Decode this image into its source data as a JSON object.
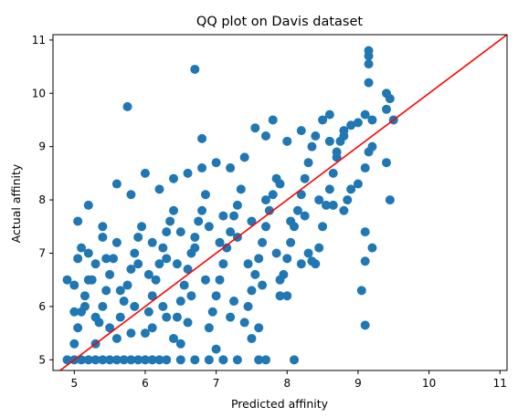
{
  "chart_data": {
    "type": "scatter",
    "title": "QQ plot on Davis dataset",
    "xlabel": "Predicted affinity",
    "ylabel": "Actual affinity",
    "xlim": [
      4.7,
      11.1
    ],
    "ylim": [
      4.8,
      11.1
    ],
    "xticks": [
      "5",
      "6",
      "7",
      "8",
      "9",
      "10",
      "11"
    ],
    "yticks": [
      "5",
      "6",
      "7",
      "8",
      "9",
      "10",
      "11"
    ],
    "grid": false,
    "colors": {
      "points": "#1f77b4",
      "reference_line": "#ff0000"
    },
    "reference_line": {
      "x": [
        4.7,
        11.1
      ],
      "y": [
        4.7,
        11.1
      ]
    },
    "series": [
      {
        "points": [
          [
            5.0,
            5.0
          ],
          [
            5.1,
            5.0
          ],
          [
            5.2,
            5.0
          ],
          [
            5.3,
            5.0
          ],
          [
            5.4,
            5.0
          ],
          [
            5.5,
            5.0
          ],
          [
            5.6,
            5.0
          ],
          [
            5.7,
            5.0
          ],
          [
            5.8,
            5.0
          ],
          [
            5.9,
            5.0
          ],
          [
            6.0,
            5.0
          ],
          [
            6.1,
            5.0
          ],
          [
            6.2,
            5.0
          ],
          [
            6.3,
            5.0
          ],
          [
            6.5,
            5.0
          ],
          [
            6.7,
            5.0
          ],
          [
            6.9,
            5.0
          ],
          [
            7.1,
            5.0
          ],
          [
            7.3,
            5.0
          ],
          [
            7.6,
            5.0
          ],
          [
            7.7,
            5.0
          ],
          [
            8.1,
            5.0
          ],
          [
            4.9,
            5.0
          ],
          [
            5.0,
            5.3
          ],
          [
            5.05,
            5.6
          ],
          [
            5.1,
            5.9
          ],
          [
            5.15,
            6.2
          ],
          [
            5.2,
            6.5
          ],
          [
            5.0,
            6.4
          ],
          [
            5.05,
            6.9
          ],
          [
            5.1,
            7.1
          ],
          [
            5.2,
            7.0
          ],
          [
            5.3,
            5.3
          ],
          [
            5.35,
            5.7
          ],
          [
            5.4,
            6.0
          ],
          [
            5.45,
            6.3
          ],
          [
            5.5,
            6.6
          ],
          [
            5.55,
            6.9
          ],
          [
            5.6,
            7.2
          ],
          [
            5.3,
            6.8
          ],
          [
            5.4,
            7.3
          ],
          [
            5.6,
            5.4
          ],
          [
            5.65,
            5.8
          ],
          [
            5.7,
            6.1
          ],
          [
            5.75,
            6.4
          ],
          [
            5.8,
            6.7
          ],
          [
            5.85,
            7.0
          ],
          [
            5.9,
            7.3
          ],
          [
            5.95,
            7.5
          ],
          [
            6.0,
            5.5
          ],
          [
            6.05,
            5.9
          ],
          [
            6.1,
            6.2
          ],
          [
            6.15,
            6.5
          ],
          [
            6.2,
            6.8
          ],
          [
            6.25,
            7.1
          ],
          [
            6.3,
            7.4
          ],
          [
            6.35,
            7.6
          ],
          [
            6.4,
            7.8
          ],
          [
            6.4,
            5.4
          ],
          [
            6.45,
            5.8
          ],
          [
            6.5,
            6.1
          ],
          [
            6.55,
            6.4
          ],
          [
            6.6,
            6.7
          ],
          [
            6.65,
            7.0
          ],
          [
            6.7,
            7.3
          ],
          [
            6.75,
            7.6
          ],
          [
            6.8,
            7.8
          ],
          [
            6.85,
            8.1
          ],
          [
            6.9,
            5.6
          ],
          [
            6.95,
            5.9
          ],
          [
            7.0,
            6.2
          ],
          [
            7.05,
            6.5
          ],
          [
            7.1,
            6.8
          ],
          [
            7.15,
            7.1
          ],
          [
            7.2,
            7.4
          ],
          [
            7.25,
            7.7
          ],
          [
            7.3,
            7.9
          ],
          [
            7.35,
            8.2
          ],
          [
            7.4,
            5.7
          ],
          [
            7.45,
            6.0
          ],
          [
            7.5,
            6.3
          ],
          [
            7.55,
            6.6
          ],
          [
            7.6,
            6.9
          ],
          [
            7.65,
            7.2
          ],
          [
            7.7,
            7.5
          ],
          [
            7.75,
            7.8
          ],
          [
            7.8,
            8.1
          ],
          [
            7.85,
            8.4
          ],
          [
            7.9,
            6.2
          ],
          [
            7.95,
            6.6
          ],
          [
            8.0,
            6.9
          ],
          [
            8.05,
            7.2
          ],
          [
            8.1,
            7.5
          ],
          [
            8.15,
            7.8
          ],
          [
            8.2,
            8.1
          ],
          [
            8.25,
            8.4
          ],
          [
            8.3,
            8.7
          ],
          [
            8.35,
            9.0
          ],
          [
            8.4,
            6.8
          ],
          [
            8.45,
            7.1
          ],
          [
            8.5,
            7.5
          ],
          [
            8.55,
            7.9
          ],
          [
            8.6,
            8.2
          ],
          [
            8.65,
            8.5
          ],
          [
            8.7,
            8.8
          ],
          [
            8.75,
            9.1
          ],
          [
            8.8,
            9.3
          ],
          [
            8.6,
            9.6
          ],
          [
            4.9,
            6.5
          ],
          [
            5.05,
            7.6
          ],
          [
            5.2,
            7.9
          ],
          [
            5.4,
            7.5
          ],
          [
            5.6,
            8.3
          ],
          [
            5.8,
            8.1
          ],
          [
            6.0,
            8.5
          ],
          [
            6.2,
            8.2
          ],
          [
            6.4,
            8.4
          ],
          [
            6.6,
            8.5
          ],
          [
            6.8,
            8.6
          ],
          [
            7.0,
            8.7
          ],
          [
            7.2,
            8.6
          ],
          [
            7.4,
            8.8
          ],
          [
            7.55,
            9.35
          ],
          [
            7.7,
            9.2
          ],
          [
            7.8,
            9.5
          ],
          [
            8.0,
            9.1
          ],
          [
            8.2,
            9.3
          ],
          [
            8.4,
            9.2
          ],
          [
            8.5,
            9.5
          ],
          [
            8.6,
            9.1
          ],
          [
            8.7,
            8.9
          ],
          [
            8.8,
            9.2
          ],
          [
            8.9,
            9.4
          ],
          [
            9.0,
            9.45
          ],
          [
            9.1,
            9.6
          ],
          [
            9.2,
            9.5
          ],
          [
            8.8,
            7.8
          ],
          [
            8.9,
            8.2
          ],
          [
            9.0,
            8.3
          ],
          [
            9.1,
            8.6
          ],
          [
            9.15,
            8.9
          ],
          [
            9.2,
            9.0
          ],
          [
            9.4,
            8.7
          ],
          [
            9.4,
            9.7
          ],
          [
            9.4,
            10.0
          ],
          [
            9.45,
            9.9
          ],
          [
            9.5,
            9.5
          ],
          [
            9.15,
            10.8
          ],
          [
            9.15,
            10.7
          ],
          [
            9.15,
            10.55
          ],
          [
            9.15,
            10.2
          ],
          [
            9.1,
            7.4
          ],
          [
            9.05,
            6.3
          ],
          [
            9.1,
            5.65
          ],
          [
            9.1,
            6.85
          ],
          [
            9.2,
            7.1
          ],
          [
            9.45,
            8.0
          ],
          [
            6.7,
            10.45
          ],
          [
            5.75,
            9.75
          ],
          [
            6.8,
            9.15
          ],
          [
            7.9,
            6.5
          ],
          [
            8.0,
            6.2
          ],
          [
            8.2,
            6.8
          ],
          [
            8.3,
            7.0
          ],
          [
            8.35,
            6.85
          ],
          [
            7.6,
            5.6
          ],
          [
            7.5,
            5.4
          ],
          [
            7.2,
            5.8
          ],
          [
            7.0,
            5.2
          ],
          [
            6.5,
            5.3
          ],
          [
            6.6,
            5.7
          ],
          [
            6.3,
            5.8
          ],
          [
            6.1,
            5.6
          ],
          [
            5.8,
            5.5
          ],
          [
            5.5,
            5.6
          ],
          [
            5.3,
            5.8
          ],
          [
            5.0,
            5.9
          ],
          [
            5.15,
            6.0
          ],
          [
            5.25,
            6.5
          ],
          [
            5.45,
            6.9
          ],
          [
            5.65,
            6.3
          ],
          [
            5.85,
            6.0
          ],
          [
            6.05,
            6.6
          ],
          [
            6.25,
            6.0
          ],
          [
            6.45,
            6.8
          ],
          [
            6.65,
            6.2
          ],
          [
            6.85,
            6.5
          ],
          [
            7.05,
            7.2
          ],
          [
            7.25,
            6.1
          ],
          [
            7.45,
            6.8
          ],
          [
            7.65,
            6.4
          ],
          [
            7.85,
            7.0
          ],
          [
            8.05,
            7.6
          ],
          [
            8.25,
            7.7
          ],
          [
            8.45,
            8.0
          ],
          [
            8.65,
            7.9
          ],
          [
            8.85,
            8.0
          ],
          [
            5.9,
            6.8
          ],
          [
            6.1,
            7.2
          ],
          [
            6.3,
            6.9
          ],
          [
            6.5,
            7.4
          ],
          [
            6.7,
            7.1
          ],
          [
            6.9,
            7.5
          ],
          [
            7.1,
            7.7
          ],
          [
            7.3,
            7.3
          ],
          [
            7.5,
            7.6
          ],
          [
            7.7,
            8.0
          ],
          [
            7.9,
            8.3
          ]
        ]
      }
    ]
  }
}
